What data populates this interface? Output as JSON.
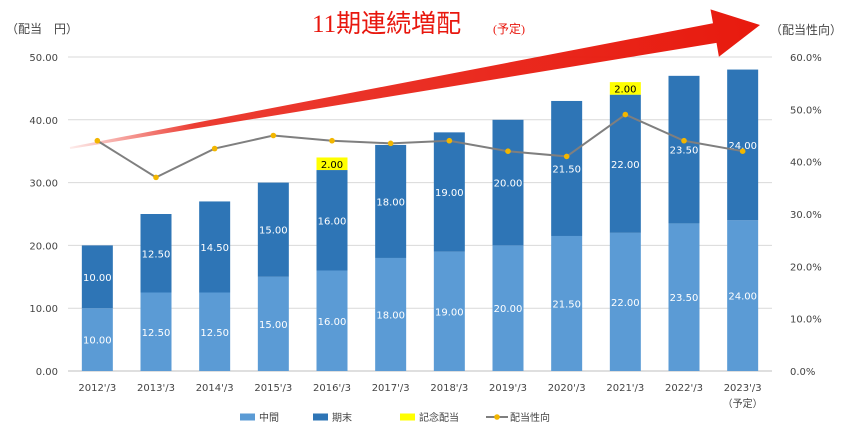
{
  "chart_data": {
    "type": "bar",
    "stacked": true,
    "title": "11期連続増配",
    "title_note": "(予定)",
    "ylabel_left": "（配当　円）",
    "ylabel_right": "（配当性向）",
    "categories": [
      "2012'/3",
      "2013'/3",
      "2014'/3",
      "2015'/3",
      "2016'/3",
      "2017'/3",
      "2018'/3",
      "2019'/3",
      "2020'/3",
      "2021'/3",
      "2022'/3",
      "2023'/3"
    ],
    "category_note": "（予定）",
    "left_ticks": [
      "0.00",
      "10.00",
      "20.00",
      "30.00",
      "40.00",
      "50.00"
    ],
    "right_ticks": [
      "0.0%",
      "10.0%",
      "20.0%",
      "30.0%",
      "40.0%",
      "50.0%",
      "60.0%"
    ],
    "ylim": [
      0,
      50
    ],
    "y2lim": [
      0,
      60
    ],
    "series": [
      {
        "name": "中間",
        "color": "#5b9bd5",
        "values": [
          10.0,
          12.5,
          12.5,
          15.0,
          16.0,
          18.0,
          19.0,
          20.0,
          21.5,
          22.0,
          23.5,
          24.0
        ],
        "labels": [
          "10.00",
          "12.50",
          "12.50",
          "15.00",
          "16.00",
          "18.00",
          "19.00",
          "20.00",
          "21.50",
          "22.00",
          "23.50",
          "24.00"
        ]
      },
      {
        "name": "期末",
        "color": "#2e75b6",
        "values": [
          10.0,
          12.5,
          14.5,
          15.0,
          16.0,
          18.0,
          19.0,
          20.0,
          21.5,
          22.0,
          23.5,
          24.0
        ],
        "labels": [
          "10.00",
          "12.50",
          "14.50",
          "15.00",
          "16.00",
          "18.00",
          "19.00",
          "20.00",
          "21.50",
          "22.00",
          "23.50",
          "24.00"
        ]
      },
      {
        "name": "記念配当",
        "color": "#ffff00",
        "values": [
          0,
          0,
          0,
          0,
          2.0,
          0,
          0,
          0,
          0,
          2.0,
          0,
          0
        ],
        "labels": [
          "",
          "",
          "",
          "",
          "2.00",
          "",
          "",
          "",
          "",
          "2.00",
          "",
          ""
        ]
      },
      {
        "name": "配当性向",
        "type": "line",
        "axis": "right",
        "color": "#7f7f7f",
        "marker_color": "#f2b600",
        "values": [
          44.0,
          37.0,
          42.5,
          45.0,
          44.0,
          43.5,
          44.0,
          42.0,
          41.0,
          49.0,
          44.0,
          42.0
        ]
      }
    ],
    "grid": true,
    "legend_position": "bottom"
  }
}
